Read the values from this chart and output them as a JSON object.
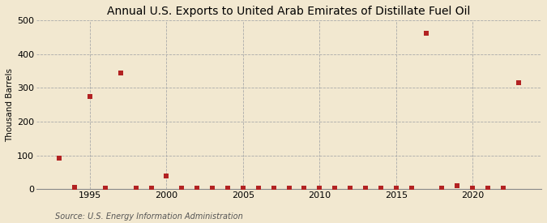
{
  "title": "Annual U.S. Exports to United Arab Emirates of Distillate Fuel Oil",
  "ylabel": "Thousand Barrels",
  "source": "Source: U.S. Energy Information Administration",
  "background_color": "#f2e8d0",
  "plot_background_color": "#f2e8d0",
  "years": [
    1993,
    1994,
    1995,
    1996,
    1997,
    1998,
    1999,
    2000,
    2001,
    2002,
    2003,
    2004,
    2005,
    2006,
    2007,
    2008,
    2009,
    2010,
    2011,
    2012,
    2013,
    2014,
    2015,
    2016,
    2017,
    2018,
    2019,
    2020,
    2021,
    2022,
    2023
  ],
  "values": [
    91,
    5,
    274,
    4,
    344,
    3,
    2,
    38,
    2,
    3,
    3,
    4,
    3,
    3,
    2,
    4,
    3,
    3,
    2,
    3,
    2,
    3,
    2,
    3,
    461,
    4,
    10,
    3,
    4,
    4,
    315
  ],
  "marker_color": "#b22222",
  "marker_size": 16,
  "ylim": [
    0,
    500
  ],
  "yticks": [
    0,
    100,
    200,
    300,
    400,
    500
  ],
  "xlim": [
    1991.5,
    2024.5
  ],
  "xticks": [
    1995,
    2000,
    2005,
    2010,
    2015,
    2020
  ],
  "title_fontsize": 10,
  "ylabel_fontsize": 7.5,
  "source_fontsize": 7,
  "tick_fontsize": 8,
  "grid_color": "#aaaaaa",
  "spine_color": "#888888"
}
